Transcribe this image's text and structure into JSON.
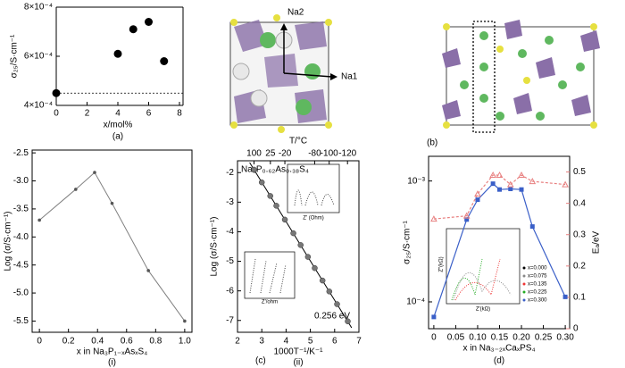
{
  "figure": {
    "panel_labels": [
      "(b)",
      "(c)"
    ],
    "structure_labels": [
      "Na2",
      "Na1"
    ]
  },
  "chart_data": [
    {
      "type": "scatter",
      "panel": "(a)",
      "xlabel": "x/mol%",
      "ylabel": "σ₂₅/S·cm⁻¹",
      "x": [
        0,
        4,
        5,
        6,
        7
      ],
      "values": [
        0.00045,
        0.00061,
        0.00071,
        0.00074,
        0.00058
      ],
      "color": "#000000",
      "xlim": [
        0,
        8
      ],
      "xticks": [
        0,
        2,
        4,
        6,
        8
      ],
      "ylim": [
        0.0004,
        0.0008
      ],
      "yticks": [
        {
          "value": 0.0004,
          "label": "4×10⁻⁴"
        },
        {
          "value": 0.0006,
          "label": "6×10⁻⁴"
        },
        {
          "value": 0.0008,
          "label": "8×10⁻⁴"
        }
      ],
      "reference_line": 0.00045
    },
    {
      "type": "line",
      "panel": "(i)",
      "xlabel": "x in Na₃P₁₋ₓAsₓS₄",
      "ylabel": "Log (σ/S·cm⁻¹)",
      "x": [
        0,
        0.25,
        0.38,
        0.5,
        0.75,
        1.0
      ],
      "values": [
        -3.7,
        -3.15,
        -2.85,
        -3.4,
        -4.6,
        -5.5
      ],
      "color": "#808080",
      "xlim": [
        -0.05,
        1.05
      ],
      "xticks": [
        0,
        0.2,
        0.4,
        0.6,
        0.8,
        {
          "value": 1,
          "label": "1.0"
        }
      ],
      "ylim": [
        -5.7,
        -2.45
      ],
      "yticks": [
        -5.5,
        {
          "value": -5,
          "label": "-5.0"
        },
        -4.5,
        {
          "value": -4,
          "label": "-4.0"
        },
        -3.5,
        {
          "value": -3,
          "label": "-3.0"
        },
        -2.5
      ]
    },
    {
      "type": "scatter",
      "panel": "(ii)",
      "title": "Na₃P₀.₆₂As₀.₃₈S₄",
      "annotation": "0.256 eV",
      "xlabel": "1000T⁻¹/K⁻¹",
      "ylabel": "Log (σ/S·cm⁻¹)",
      "x2label": "T/°C",
      "x": [
        2.68,
        3.0,
        3.35,
        3.6,
        3.95,
        4.3,
        4.6,
        4.9,
        5.18,
        5.5,
        5.78,
        6.1,
        6.54
      ],
      "values": [
        -1.9,
        -2.33,
        -2.79,
        -3.12,
        -3.59,
        -4.05,
        -4.45,
        -4.85,
        -5.23,
        -5.65,
        -6.02,
        -6.45,
        -7.03
      ],
      "color": "#777777",
      "fit": {
        "x": [
          2.5,
          6.7
        ],
        "values": [
          -1.66,
          -7.25
        ],
        "color": "#000000"
      },
      "xlim": [
        2,
        7
      ],
      "xticks": [
        2,
        3,
        4,
        5,
        6,
        7
      ],
      "ylim": [
        -7.4,
        -1.6
      ],
      "yticks": [
        -7,
        -6,
        -5,
        -4,
        -3,
        -2
      ],
      "x2scale": "reciprocal-kelvin",
      "x2ticks": [
        100,
        25,
        -20,
        -80,
        -100,
        -120
      ],
      "inset_labels": [
        "Z' (Ohm)",
        "Z'/ohm"
      ]
    },
    {
      "type": "line",
      "panel": "(d)",
      "xlabel": "x in Na₃₋₂ₓCaₓPS₄",
      "ylabel": "σ₂₅/S·cm⁻¹",
      "y2label": "Eₐ/eV",
      "x": [
        0,
        0.075,
        0.1,
        0.135,
        0.15,
        0.175,
        0.2,
        0.225,
        0.3
      ],
      "series": [
        {
          "color": "#3a5fc8",
          "marker": "square",
          "axis": "y",
          "values": [
            7.5e-05,
            0.00048,
            0.0007,
            0.00095,
            0.00085,
            0.00086,
            0.00085,
            0.00042,
            0.00011
          ]
        },
        {
          "color": "#e88080",
          "marker": "triangle",
          "dash": true,
          "axis": "y2",
          "values": [
            0.35,
            0.36,
            0.43,
            0.49,
            0.49,
            0.46,
            0.49,
            0.47,
            0.46
          ]
        }
      ],
      "xlim": [
        -0.012,
        0.31
      ],
      "xticks": [
        0,
        0.05,
        {
          "value": 0.1,
          "label": "0.10"
        },
        0.15,
        {
          "value": 0.2,
          "label": "0.20"
        },
        0.25,
        {
          "value": 0.3,
          "label": "0.30"
        }
      ],
      "yscale": "log",
      "ylim": [
        6e-05,
        0.0016
      ],
      "yticks": [
        {
          "value": 0.0001,
          "label": "10⁻⁴"
        },
        {
          "value": 0.001,
          "label": "10⁻³"
        }
      ],
      "y2lim": [
        0,
        0.55
      ],
      "y2ticks": [
        0,
        0.1,
        0.2,
        0.3,
        0.4,
        0.5
      ],
      "inset_labels": [
        "Z″(kΩ)",
        "Z′(kΩ)"
      ],
      "inset_legend": [
        "x=0.000",
        "x=0.075",
        "x=0.135",
        "x=0.225",
        "x=0.300"
      ]
    }
  ]
}
